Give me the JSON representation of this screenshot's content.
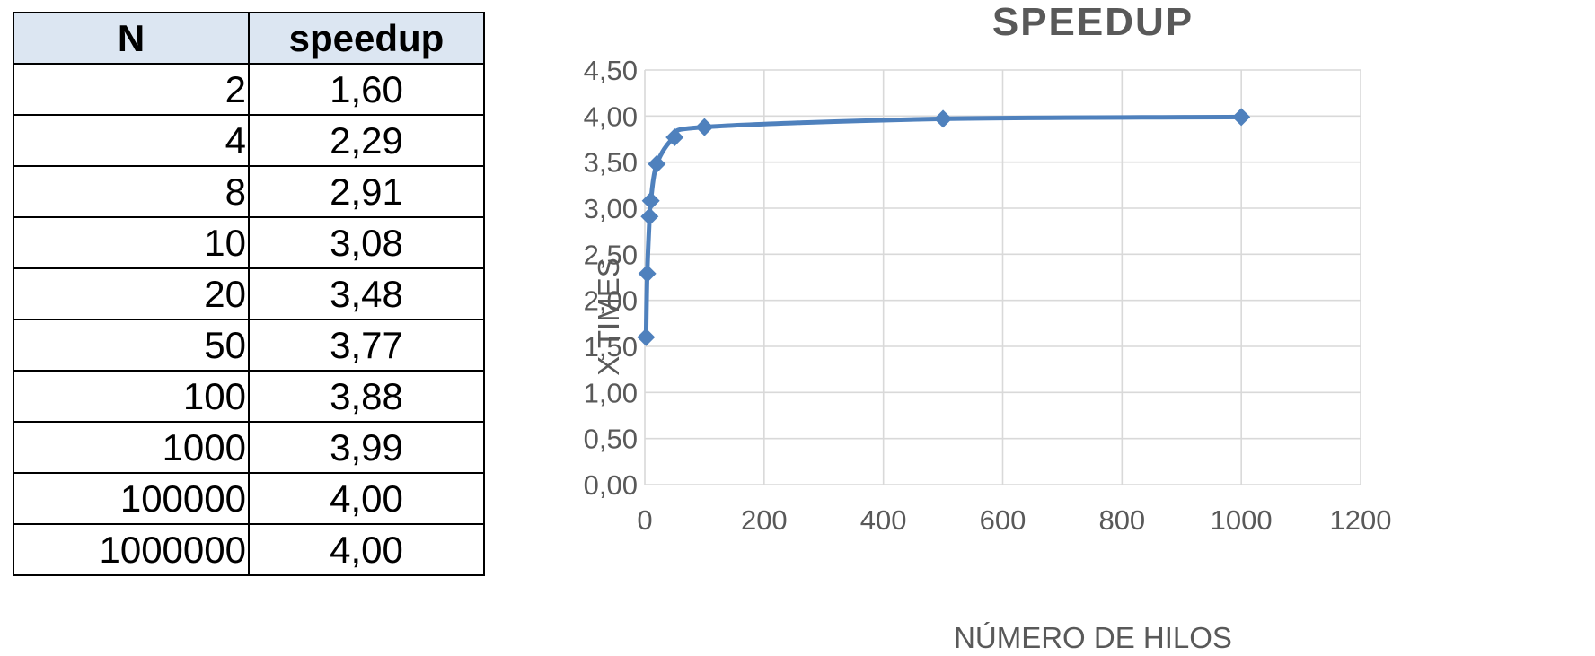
{
  "table": {
    "headers": [
      "N",
      "speedup"
    ],
    "rows": [
      [
        "2",
        "1,60"
      ],
      [
        "4",
        "2,29"
      ],
      [
        "8",
        "2,91"
      ],
      [
        "10",
        "3,08"
      ],
      [
        "20",
        "3,48"
      ],
      [
        "50",
        "3,77"
      ],
      [
        "100",
        "3,88"
      ],
      [
        "1000",
        "3,99"
      ],
      [
        "100000",
        "4,00"
      ],
      [
        "1000000",
        "4,00"
      ]
    ]
  },
  "chart_data": {
    "type": "line",
    "title": "SPEEDUP",
    "xlabel": "NÚMERO DE HILOS",
    "ylabel": "X TIMES",
    "x": [
      2,
      4,
      8,
      10,
      20,
      50,
      100,
      500,
      1000
    ],
    "series": [
      {
        "values": [
          1.6,
          2.29,
          2.91,
          3.08,
          3.48,
          3.77,
          3.88,
          3.97,
          3.99
        ]
      }
    ],
    "xlim": [
      0,
      1200
    ],
    "ylim": [
      0,
      4.5
    ],
    "x_ticks": [
      "0",
      "200",
      "400",
      "600",
      "800",
      "1000",
      "1200"
    ],
    "y_ticks": [
      "0,00",
      "0,50",
      "1,00",
      "1,50",
      "2,00",
      "2,50",
      "3,00",
      "3,50",
      "4,00",
      "4,50"
    ],
    "grid": true,
    "legend": "none",
    "marker": "diamond",
    "smooth": true,
    "color": "#4f81bd"
  }
}
